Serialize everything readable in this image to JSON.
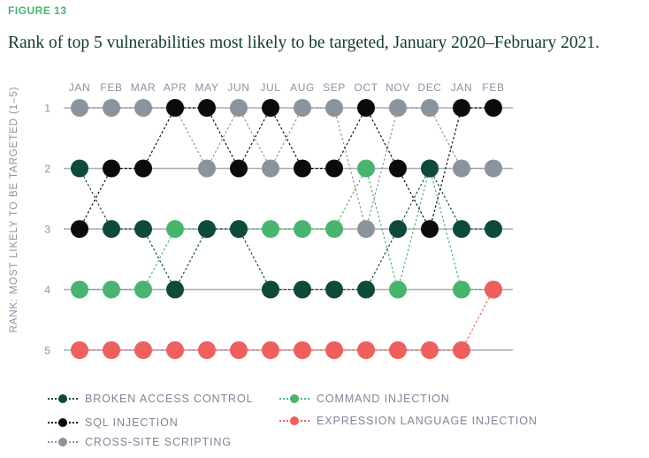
{
  "figure_label": "FIGURE 13",
  "colors": {
    "broken": "#0e4a3b",
    "sql": "#0b0b0b",
    "xss": "#8b939d",
    "cmd": "#48b56e",
    "expr": "#ee5f5d",
    "axis": "#a9aebb"
  },
  "chart_data": {
    "type": "scatter",
    "title": "Rank of top 5 vulnerabilities most likely to be targeted, January 2020–February 2021.",
    "xlabel": "",
    "ylabel": "RANK: MOST LIKELY TO BE TARGETED (1–5)",
    "x": [
      "JAN",
      "FEB",
      "MAR",
      "APR",
      "MAY",
      "JUN",
      "JUL",
      "AUG",
      "SEP",
      "OCT",
      "NOV",
      "DEC",
      "JAN",
      "FEB"
    ],
    "y_ticks": [
      "1",
      "2",
      "3",
      "4",
      "5"
    ],
    "ylim": [
      1,
      5
    ],
    "y_inverted": true,
    "series": [
      {
        "key": "xss",
        "name": "CROSS-SITE SCRIPTING",
        "values": [
          1,
          1,
          1,
          1,
          2,
          1,
          2,
          1,
          1,
          3,
          1,
          1,
          2,
          2
        ]
      },
      {
        "key": "cmd",
        "name": "COMMAND INJECTION",
        "values": [
          4,
          4,
          4,
          3,
          3,
          3,
          3,
          3,
          3,
          2,
          4,
          2,
          4,
          4
        ]
      },
      {
        "key": "broken",
        "name": "BROKEN ACCESS CONTROL",
        "values": [
          2,
          3,
          3,
          4,
          3,
          3,
          4,
          4,
          4,
          4,
          3,
          2,
          3,
          3
        ]
      },
      {
        "key": "sql",
        "name": "SQL INJECTION",
        "values": [
          3,
          2,
          2,
          1,
          1,
          2,
          1,
          2,
          2,
          1,
          2,
          3,
          1,
          1
        ]
      },
      {
        "key": "expr",
        "name": "EXPRESSION LANGUAGE INJECTION",
        "values": [
          5,
          5,
          5,
          5,
          5,
          5,
          5,
          5,
          5,
          5,
          5,
          5,
          5,
          4
        ]
      }
    ],
    "legend": [
      {
        "key": "broken",
        "label": "BROKEN ACCESS CONTROL"
      },
      {
        "key": "sql",
        "label": "SQL INJECTION"
      },
      {
        "key": "xss",
        "label": "CROSS-SITE SCRIPTING"
      },
      {
        "key": "cmd",
        "label": "COMMAND INJECTION"
      },
      {
        "key": "expr",
        "label": "EXPRESSION LANGUAGE INJECTION"
      }
    ]
  }
}
